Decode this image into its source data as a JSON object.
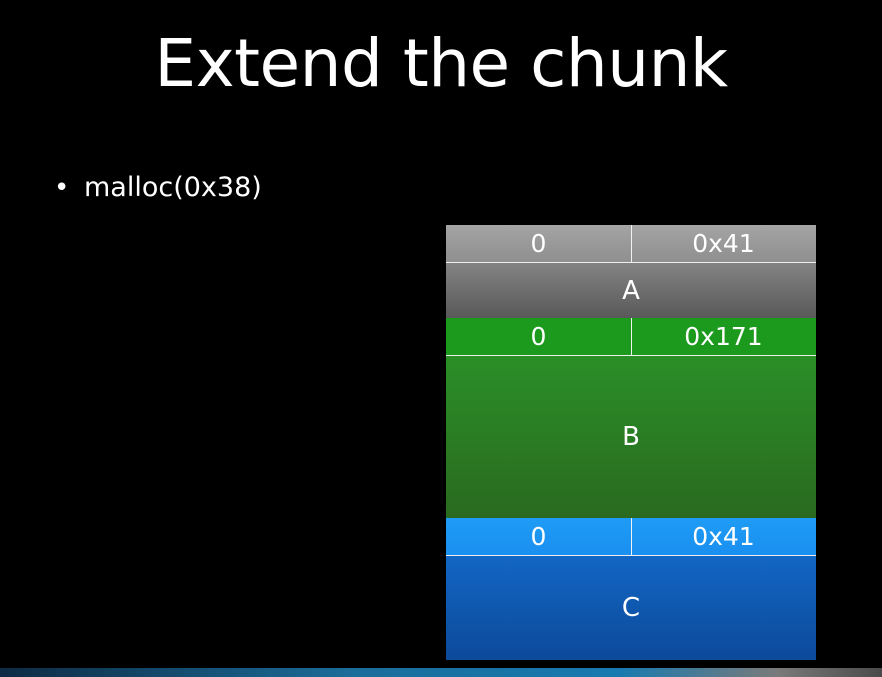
{
  "slide": {
    "title": "Extend the chunk",
    "bullets": [
      {
        "text": "malloc(0x38)"
      }
    ]
  },
  "heap": {
    "chunks": [
      {
        "label": "A",
        "prev_size": "0",
        "size": "0x41",
        "color": "#8a8a8a"
      },
      {
        "label": "B",
        "prev_size": "0",
        "size": "0x171",
        "color": "#1c9a1e"
      },
      {
        "label": "C",
        "prev_size": "0",
        "size": "0x41",
        "color": "#1e9cf5"
      }
    ]
  }
}
